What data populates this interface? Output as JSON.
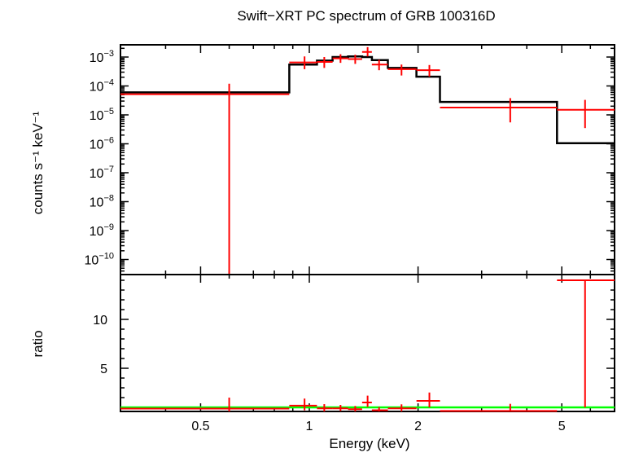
{
  "chart_data": [
    {
      "type": "scatter",
      "title": "Swift−XRT PC spectrum of GRB 100316D",
      "xlabel": "",
      "ylabel": "counts s⁻¹ keV⁻¹",
      "xscale": "log",
      "yscale": "log",
      "xlim": [
        0.3,
        7.0
      ],
      "ylim": [
        2e-11,
        0.003
      ],
      "ytick_labels": [
        {
          "base": "10",
          "exp": "−3",
          "value": 0.001
        },
        {
          "base": "10",
          "exp": "−4",
          "value": 0.0001
        },
        {
          "base": "10",
          "exp": "−5",
          "value": 1e-05
        },
        {
          "base": "10",
          "exp": "−6",
          "value": 1e-06
        },
        {
          "base": "10",
          "exp": "−7",
          "value": 1e-07
        },
        {
          "base": "10",
          "exp": "−8",
          "value": 1e-08
        },
        {
          "base": "10",
          "exp": "−9",
          "value": 1e-09
        },
        {
          "base": "10",
          "exp": "−10",
          "value": 1e-10
        }
      ],
      "data": [
        {
          "x": 0.6,
          "xlo": 0.3,
          "xhi": 0.88,
          "y": 5.2e-05,
          "ylo": 1e-11,
          "yhi": 0.00012
        },
        {
          "x": 0.97,
          "xlo": 0.88,
          "xhi": 1.05,
          "y": 0.00065,
          "ylo": 0.00038,
          "yhi": 0.00105
        },
        {
          "x": 1.1,
          "xlo": 1.05,
          "xhi": 1.16,
          "y": 0.00068,
          "ylo": 0.00042,
          "yhi": 0.001
        },
        {
          "x": 1.22,
          "xlo": 1.16,
          "xhi": 1.28,
          "y": 0.0009,
          "ylo": 0.00063,
          "yhi": 0.00125
        },
        {
          "x": 1.34,
          "xlo": 1.28,
          "xhi": 1.4,
          "y": 0.00085,
          "ylo": 0.00058,
          "yhi": 0.0012
        },
        {
          "x": 1.45,
          "xlo": 1.4,
          "xhi": 1.49,
          "y": 0.0015,
          "ylo": 0.00105,
          "yhi": 0.0022
        },
        {
          "x": 1.56,
          "xlo": 1.49,
          "xhi": 1.65,
          "y": 0.00055,
          "ylo": 0.00035,
          "yhi": 0.0008
        },
        {
          "x": 1.8,
          "xlo": 1.65,
          "xhi": 1.98,
          "y": 0.00038,
          "ylo": 0.00023,
          "yhi": 0.00055
        },
        {
          "x": 2.15,
          "xlo": 1.98,
          "xhi": 2.3,
          "y": 0.00035,
          "ylo": 0.00021,
          "yhi": 0.00053
        },
        {
          "x": 3.6,
          "xlo": 2.3,
          "xhi": 4.85,
          "y": 1.8e-05,
          "ylo": 5.5e-06,
          "yhi": 3.8e-05
        },
        {
          "x": 5.8,
          "xlo": 4.85,
          "xhi": 7.0,
          "y": 1.5e-05,
          "ylo": 3.5e-06,
          "yhi": 3.3e-05
        }
      ],
      "model_steps": [
        {
          "xlo": 0.3,
          "xhi": 0.88,
          "y": 6e-05
        },
        {
          "xlo": 0.88,
          "xhi": 1.05,
          "y": 0.00055
        },
        {
          "xlo": 1.05,
          "xhi": 1.16,
          "y": 0.00075
        },
        {
          "xlo": 1.16,
          "xhi": 1.28,
          "y": 0.001
        },
        {
          "xlo": 1.28,
          "xhi": 1.4,
          "y": 0.00105
        },
        {
          "xlo": 1.4,
          "xhi": 1.49,
          "y": 0.001
        },
        {
          "xlo": 1.49,
          "xhi": 1.65,
          "y": 0.00078
        },
        {
          "xlo": 1.65,
          "xhi": 1.98,
          "y": 0.00042
        },
        {
          "xlo": 1.98,
          "xhi": 2.3,
          "y": 0.00021
        },
        {
          "xlo": 2.3,
          "xhi": 4.85,
          "y": 2.8e-05
        },
        {
          "xlo": 4.85,
          "xhi": 7.0,
          "y": 1.05e-06
        }
      ],
      "colors": {
        "data": "#ff0000",
        "model": "#000000",
        "axes": "#000000"
      }
    },
    {
      "type": "scatter",
      "xlabel": "Energy (keV)",
      "ylabel": "ratio",
      "xscale": "log",
      "xlim": [
        0.3,
        7.0
      ],
      "ylim": [
        0.4,
        14
      ],
      "xticks": [
        0.5,
        1,
        2,
        5
      ],
      "xtick_labels": [
        "0.5",
        "1",
        "2",
        "5"
      ],
      "yticks": [
        5,
        10
      ],
      "ytick_labels": [
        "5",
        "10"
      ],
      "data": [
        {
          "x": 0.6,
          "xlo": 0.3,
          "xhi": 0.88,
          "y": 0.87,
          "ylo": 0.0,
          "yhi": 2.0
        },
        {
          "x": 0.97,
          "xlo": 0.88,
          "xhi": 1.05,
          "y": 1.18,
          "ylo": 0.7,
          "yhi": 1.9
        },
        {
          "x": 1.1,
          "xlo": 1.05,
          "xhi": 1.16,
          "y": 0.9,
          "ylo": 0.56,
          "yhi": 1.33
        },
        {
          "x": 1.22,
          "xlo": 1.16,
          "xhi": 1.28,
          "y": 0.9,
          "ylo": 0.63,
          "yhi": 1.25
        },
        {
          "x": 1.34,
          "xlo": 1.28,
          "xhi": 1.4,
          "y": 0.81,
          "ylo": 0.55,
          "yhi": 1.14
        },
        {
          "x": 1.45,
          "xlo": 1.4,
          "xhi": 1.49,
          "y": 1.5,
          "ylo": 1.05,
          "yhi": 2.2
        },
        {
          "x": 1.56,
          "xlo": 1.49,
          "xhi": 1.65,
          "y": 0.71,
          "ylo": 0.45,
          "yhi": 1.03
        },
        {
          "x": 1.8,
          "xlo": 1.65,
          "xhi": 1.98,
          "y": 0.9,
          "ylo": 0.55,
          "yhi": 1.31
        },
        {
          "x": 2.15,
          "xlo": 1.98,
          "xhi": 2.3,
          "y": 1.67,
          "ylo": 1.0,
          "yhi": 2.52
        },
        {
          "x": 3.6,
          "xlo": 2.3,
          "xhi": 4.85,
          "y": 0.64,
          "ylo": 0.2,
          "yhi": 1.36
        },
        {
          "x": 5.8,
          "xlo": 4.85,
          "xhi": 7.0,
          "y": 14.0,
          "ylo": 1.0,
          "yhi": 14.0
        }
      ],
      "reference_line": {
        "y": 1.0,
        "color": "#00ff00"
      },
      "colors": {
        "data": "#ff0000",
        "axes": "#000000"
      }
    }
  ]
}
